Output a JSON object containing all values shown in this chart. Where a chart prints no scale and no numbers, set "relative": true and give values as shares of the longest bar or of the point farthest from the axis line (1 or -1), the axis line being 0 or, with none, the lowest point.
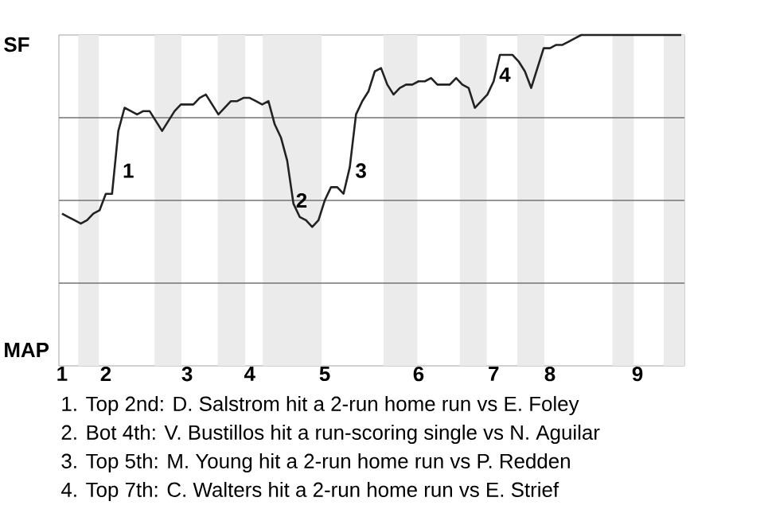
{
  "chart_data": {
    "type": "line",
    "relative": true,
    "categories": [
      "1",
      null,
      null,
      null,
      null,
      null,
      null,
      "2",
      null,
      null,
      null,
      null,
      null,
      null,
      null,
      null,
      null,
      null,
      null,
      null,
      "3",
      null,
      null,
      null,
      null,
      null,
      null,
      null,
      null,
      null,
      "4",
      null,
      null,
      null,
      null,
      null,
      null,
      null,
      null,
      null,
      null,
      null,
      "5",
      null,
      null,
      null,
      null,
      null,
      null,
      null,
      null,
      null,
      null,
      null,
      null,
      null,
      null,
      "6",
      null,
      null,
      null,
      null,
      null,
      null,
      null,
      null,
      null,
      null,
      null,
      "7",
      null,
      null,
      null,
      null,
      null,
      null,
      null,
      null,
      "8",
      null,
      null,
      null,
      null,
      null,
      null,
      null,
      null,
      null,
      null,
      null,
      null,
      null,
      "9",
      null,
      null,
      null,
      null,
      null,
      null,
      null
    ],
    "series": [
      {
        "color": "#222222",
        "values": [
          0.46,
          0.45,
          0.44,
          0.43,
          0.44,
          0.46,
          0.47,
          0.52,
          0.52,
          0.71,
          0.78,
          0.77,
          0.76,
          0.77,
          0.77,
          0.74,
          0.71,
          0.74,
          0.77,
          0.79,
          0.79,
          0.79,
          0.81,
          0.82,
          0.79,
          0.76,
          0.78,
          0.8,
          0.8,
          0.81,
          0.81,
          0.8,
          0.79,
          0.8,
          0.73,
          0.69,
          0.62,
          0.49,
          0.45,
          0.44,
          0.42,
          0.44,
          0.5,
          0.54,
          0.54,
          0.52,
          0.6,
          0.76,
          0.8,
          0.83,
          0.89,
          0.9,
          0.85,
          0.82,
          0.84,
          0.85,
          0.85,
          0.86,
          0.86,
          0.87,
          0.85,
          0.85,
          0.85,
          0.87,
          0.85,
          0.84,
          0.78,
          0.8,
          0.82,
          0.86,
          0.94,
          0.94,
          0.94,
          0.92,
          0.89,
          0.84,
          0.9,
          0.96,
          0.96,
          0.97,
          0.97,
          0.98,
          0.99,
          1.0,
          1.0,
          1.0,
          1.0,
          1.0,
          1.0,
          1.0,
          1.0,
          1.0,
          1.0,
          1.0,
          1.0,
          1.0,
          1.0,
          1.0,
          1.0,
          1.0
        ]
      }
    ],
    "grid": "y",
    "marker": "none",
    "line_style": "solid",
    "annotations": [
      "1",
      "2",
      "3",
      "4",
      "1. Top 2nd: D. Salstrom hit a 2-run home run vs E. Foley",
      "2. Bot 4th: V. Bustillos hit a run-scoring single vs N. Aguilar",
      "3. Top 5th: M. Young hit a 2-run home run vs P. Redden",
      "4. Top 7th: C. Walters hit a 2-run home run vs E. Strief",
      "SF",
      "MAP"
    ]
  }
}
